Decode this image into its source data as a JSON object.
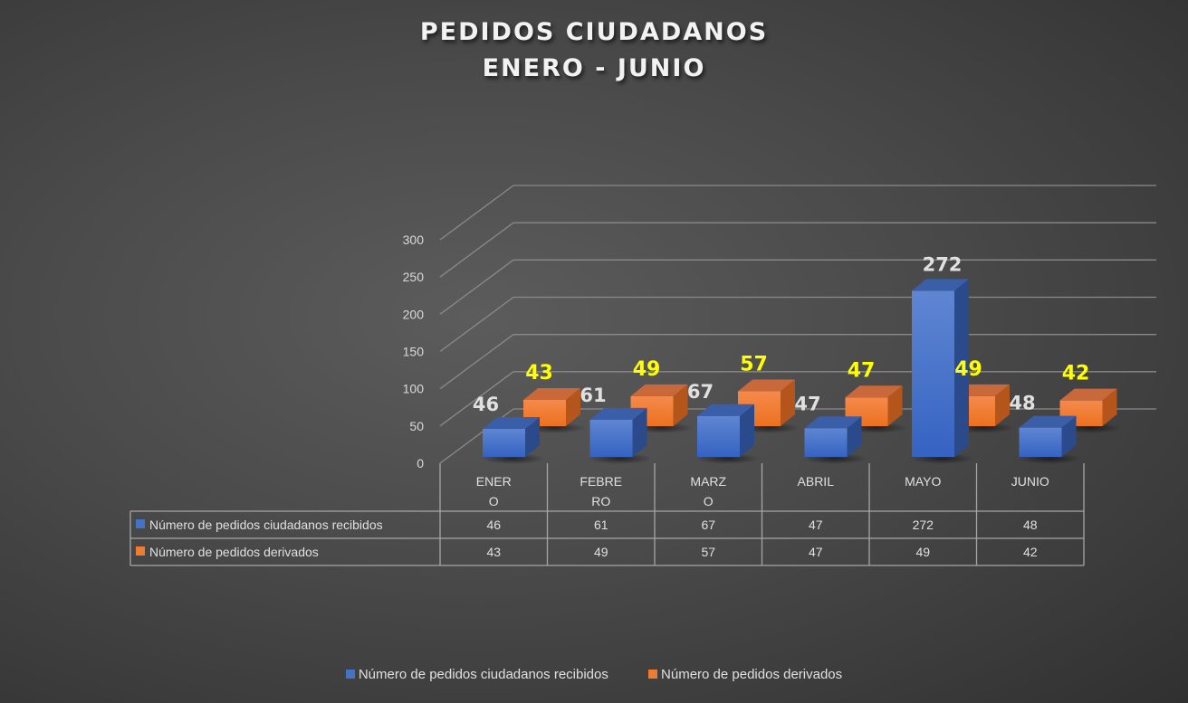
{
  "chart_data": {
    "type": "bar",
    "style": "3d-clustered-column-with-data-table",
    "title": "PEDIDOS CIUDADANOS",
    "subtitle": "ENERO - JUNIO",
    "categories": [
      "ENERO",
      "FEBRERO",
      "MARZO",
      "ABRIL",
      "MAYO",
      "JUNIO"
    ],
    "category_labels_wrapped": [
      [
        "ENER",
        "O"
      ],
      [
        "FEBRE",
        "RO"
      ],
      [
        "MARZ",
        "O"
      ],
      [
        "ABRIL"
      ],
      [
        "MAYO"
      ],
      [
        "JUNIO"
      ]
    ],
    "series": [
      {
        "name": "Número de pedidos ciudadanos recibidos",
        "values": [
          46,
          61,
          67,
          47,
          272,
          48
        ],
        "color": "#4472c4",
        "label_color": "#e0e0e0"
      },
      {
        "name": "Número de pedidos derivados",
        "values": [
          43,
          49,
          57,
          47,
          49,
          42
        ],
        "color": "#ed7d31",
        "label_color": "#ffff00"
      }
    ],
    "xlabel": "",
    "ylabel": "",
    "ylim": [
      0,
      300
    ],
    "yticks": [
      0,
      50,
      100,
      150,
      200,
      250,
      300
    ],
    "grid": true,
    "legend_position": "bottom",
    "data_table": true
  }
}
